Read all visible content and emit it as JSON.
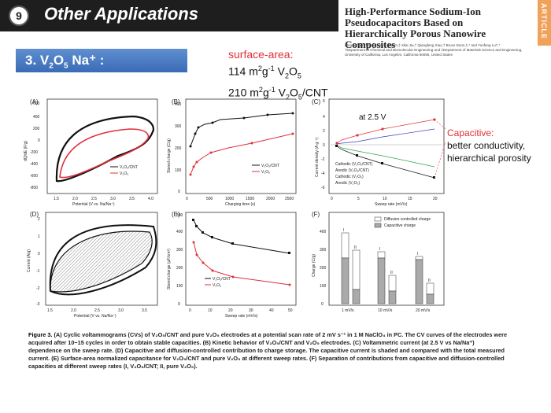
{
  "header": {
    "slide_number": "9",
    "title": "Other Applications"
  },
  "paper": {
    "title": "High-Performance Sodium-Ion Pseudocapacitors Based on Hierarchically Porous Nanowire Composites",
    "authors": "Zheng Chen,† Veronica Augustyn,‡ Xilai Jia,† Qiangfeng Xiao,† Bruce Dunn,‡,* and Yunfeng Lu†,*",
    "affiliation": "†Department of Chemical and Biomolecular Engineering and ‡Department of Materials Science and Engineering, University of California, Los Angeles, California 90095, United States",
    "tab_label": "ARTICLE",
    "tab_color": "#f0a15a"
  },
  "section": {
    "label_prefix": "3. V",
    "sub1": "2",
    "mid": "O",
    "sub2": "5",
    "label_suffix": " Na⁺ :"
  },
  "surface": {
    "heading": "surface-area:",
    "line1_num": "114 m",
    "line1_sup": "2",
    "line1_mid": "g",
    "line1_sup2": "-1",
    "line1_mat": " V",
    "line1_sub1": "2",
    "line1_o": "O",
    "line1_sub2": "5",
    "line2_num": "210 m",
    "line2_sup": "2",
    "line2_mid": "g",
    "line2_sup2": "-1",
    "line2_mat": " V",
    "line2_sub1": "2",
    "line2_o": "O",
    "line2_sub2": "5",
    "line2_tail": "/CNT"
  },
  "annotation": {
    "heading": "Capacitive:",
    "line1": "better conductivity,",
    "line2": "hierarchical porosity",
    "color": "#e0303a"
  },
  "panels": {
    "A": {
      "letter": "(A)",
      "ylabel": "dQ/dE (F/g)",
      "xlabel": "Potential (V vs. Na/Na⁺)",
      "xticks": [
        "1.5",
        "2.0",
        "2.5",
        "3.0",
        "3.5",
        "4.0"
      ],
      "yticks": [
        "600",
        "400",
        "200",
        "0",
        "-200",
        "-400",
        "-600",
        "-800"
      ],
      "legend": [
        "V₂O₅/CNT",
        "V₂O₅"
      ]
    },
    "B": {
      "letter": "(B)",
      "ylabel": "Stored charge (C/g)",
      "xlabel": "Charging time (s)",
      "xticks": [
        "0",
        "500",
        "1000",
        "1500",
        "2000",
        "2500"
      ],
      "yticks": [
        "0",
        "100",
        "200",
        "300",
        "400"
      ],
      "legend": [
        "V₂O₅/CNT",
        "V₂O₅"
      ]
    },
    "C": {
      "letter": "(C)",
      "ylabel": "Current density (A g⁻¹)",
      "xlabel": "Sweep rate (mV/s)",
      "xticks": [
        "0",
        "5",
        "10",
        "15",
        "20"
      ],
      "yticks": [
        "6",
        "4",
        "2",
        "0",
        "-2",
        "-4",
        "-6"
      ],
      "note": "at 2.5 V",
      "legend": [
        "Cathodic (V₂O₅/CNT)",
        "Anodic (V₂O₅/CNT)",
        "Cathodic (V₂O₅)",
        "Anodic (V₂O₅)"
      ]
    },
    "D": {
      "letter": "(D)",
      "ylabel": "Current (A/g)",
      "xlabel": "Potential (V vs. Na/Na⁺)",
      "xticks": [
        "1.5",
        "2.0",
        "2.5",
        "3.0",
        "3.5"
      ],
      "yticks": [
        "2",
        "1",
        "0",
        "-1",
        "-2",
        "-3"
      ]
    },
    "E": {
      "letter": "(E)",
      "ylabel": "Stored charge (μF/cm²)",
      "xlabel": "Sweep rate (mV/s)",
      "xticks": [
        "0",
        "10",
        "20",
        "30",
        "40",
        "50"
      ],
      "yticks": [
        "0",
        "100",
        "200",
        "300",
        "400",
        "500"
      ],
      "legend": [
        "V₂O₅/CNT",
        "V₂O₅"
      ]
    },
    "F": {
      "letter": "(F)",
      "ylabel": "Charge (C/g)",
      "xticks": [
        "1 mV/s",
        "10 mV/s",
        "20 mV/s"
      ],
      "yticks": [
        "0",
        "100",
        "200",
        "300",
        "400"
      ],
      "legend": [
        "Diffusion controlled charge",
        "Capacitive charge"
      ],
      "bar_labels": [
        "I",
        "II",
        "I",
        "II",
        "I",
        "II"
      ]
    }
  },
  "caption": {
    "lead": "Figure 3.",
    "text": " (A) Cyclic voltammograms (CVs) of V₂O₅/CNT and pure V₂O₅ electrodes at a potential scan rate of 2 mV s⁻¹ in 1 M NaClO₄ in PC. The CV curves of the electrodes were acquired after 10−15 cycles in order to obtain stable capacities. (B) Kinetic behavior of V₂O₅/CNT and V₂O₅ electrodes. (C) Voltammetric current (at 2.5 V vs Na/Na⁺) dependence on the sweep rate. (D) Capacitive and diffusion-controlled contribution to charge storage. The capacitive current is shaded and compared with the total measured current. (E) Surface-area normalized capacitance for V₂O₅/CNT and pure V₂O₅ at different sweep rates. (F) Separation of contributions from capacitive and diffusion-controlled capacities at different sweep rates (I, V₂O₅/CNT; II, pure V₂O₅)."
  },
  "colors": {
    "title_bg": "#1e1e1e",
    "section_bg": "#3a6bb5",
    "series_black": "#111111",
    "series_red": "#e0303a",
    "green": "#2aa84a",
    "blue": "#3a3ac0"
  }
}
